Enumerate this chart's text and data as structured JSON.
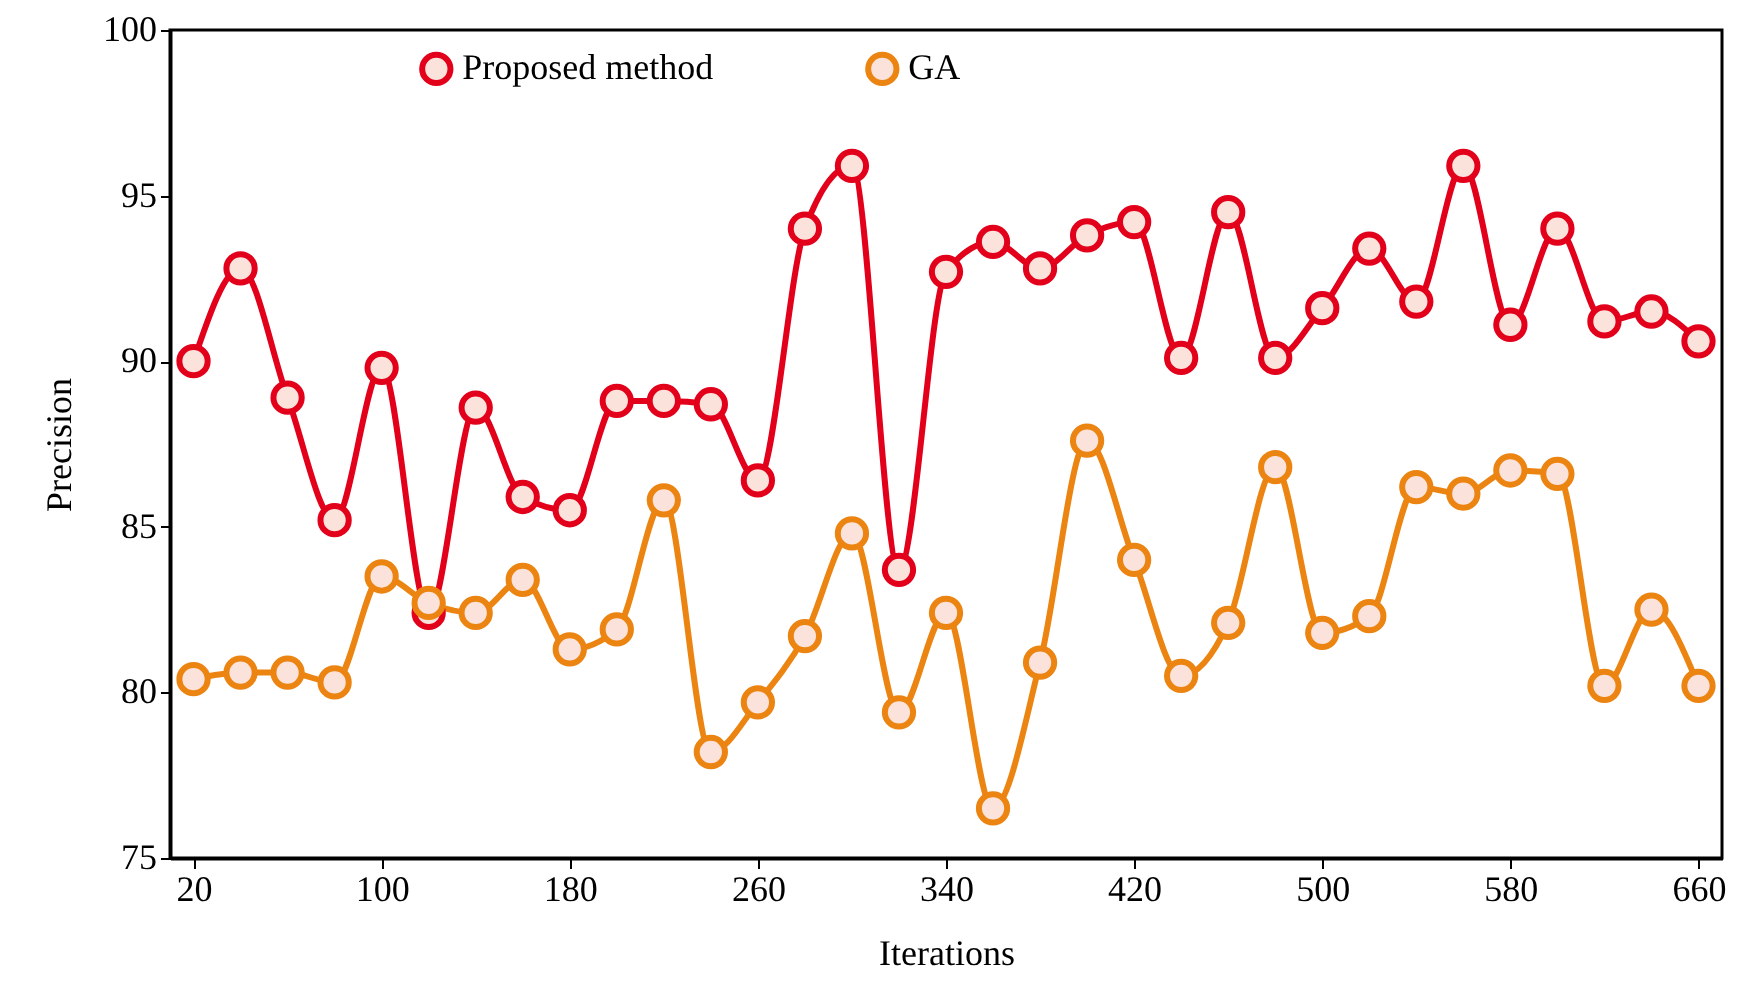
{
  "chart_data": {
    "type": "line",
    "xlabel": "Iterations",
    "ylabel": "Precision",
    "x": [
      20,
      40,
      60,
      80,
      100,
      120,
      140,
      160,
      180,
      200,
      220,
      240,
      260,
      280,
      300,
      320,
      340,
      360,
      380,
      400,
      420,
      440,
      460,
      480,
      500,
      520,
      540,
      560,
      580,
      600,
      620,
      640,
      660
    ],
    "series": [
      {
        "name": "Proposed method",
        "color": "#e3001b",
        "values": [
          90.0,
          92.8,
          88.9,
          85.2,
          89.8,
          82.4,
          88.6,
          85.9,
          85.5,
          88.8,
          88.8,
          88.7,
          86.4,
          94.0,
          95.9,
          83.7,
          92.7,
          93.6,
          92.8,
          93.8,
          94.2,
          90.1,
          94.5,
          90.1,
          91.6,
          93.4,
          91.8,
          95.9,
          91.1,
          94.0,
          91.2,
          91.5,
          90.6
        ]
      },
      {
        "name": "GA",
        "color": "#ec8412",
        "values": [
          80.4,
          80.6,
          80.6,
          80.3,
          83.5,
          82.7,
          82.4,
          83.4,
          81.3,
          81.9,
          85.8,
          78.2,
          79.7,
          81.7,
          84.8,
          79.4,
          82.4,
          76.5,
          80.9,
          87.6,
          84.0,
          80.5,
          82.1,
          86.8,
          81.8,
          82.3,
          86.2,
          86.0,
          86.7,
          86.6,
          80.2,
          82.5,
          80.2
        ]
      }
    ],
    "xlim": [
      10,
      670
    ],
    "xticks": [
      20,
      100,
      180,
      260,
      340,
      420,
      500,
      580,
      660
    ],
    "ylim": [
      75,
      100
    ],
    "yticks": [
      75,
      80,
      85,
      90,
      95,
      100
    ],
    "grid": false,
    "legend": "top",
    "marker": "circle",
    "line_style": "solid"
  }
}
